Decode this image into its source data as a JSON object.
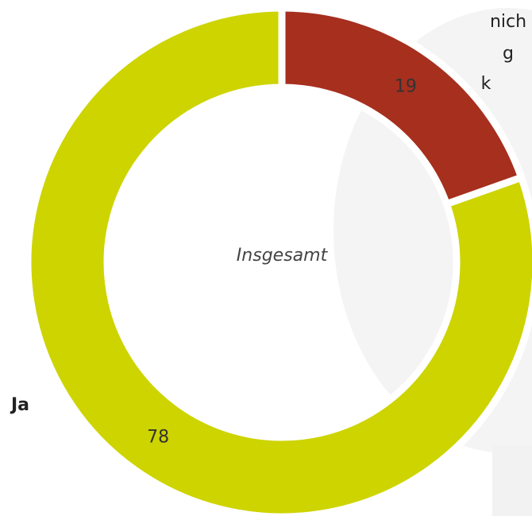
{
  "chart_data": {
    "type": "donut",
    "center_label": "Insgesamt",
    "categories": [
      [
        "nich",
        "g",
        "k"
      ],
      "Ja"
    ],
    "values": [
      19,
      78
    ],
    "colors": [
      "#a62f1e",
      "#cdd400"
    ]
  }
}
